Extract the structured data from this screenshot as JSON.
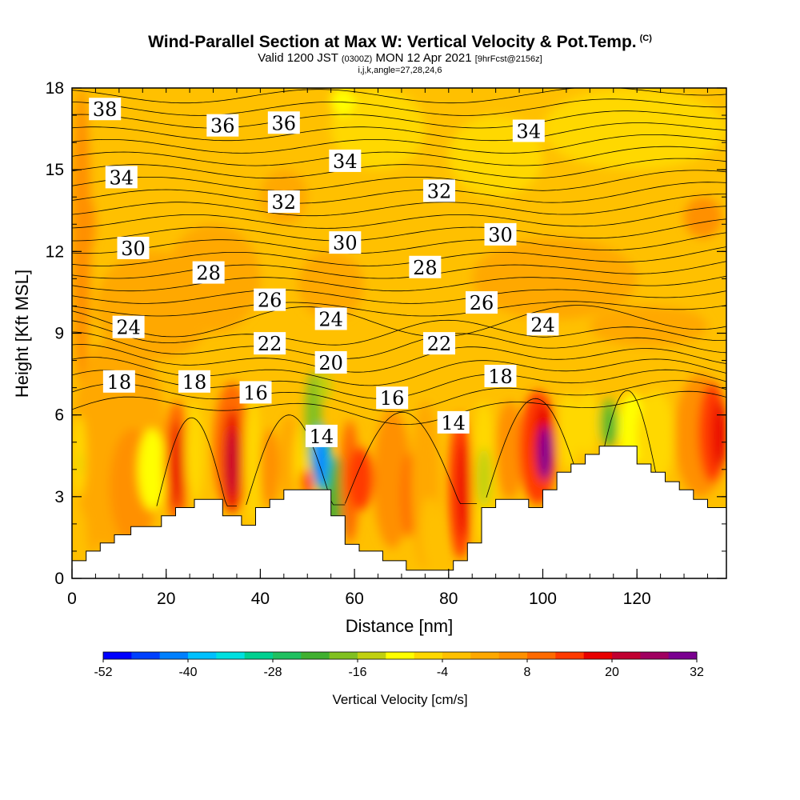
{
  "header": {
    "title": "Wind-Parallel Section at Max W: Vertical Velocity & Pot.Temp.",
    "copyright": "(C)",
    "valid_prefix": "Valid 1200 JST",
    "valid_utc": "(0300Z)",
    "valid_date": "MON 12 Apr 2021",
    "forecast": "[9hrFcst@2156z]",
    "indices": "i,j,k,angle=27,28,24,6"
  },
  "chart_data": {
    "type": "heatmap",
    "xlabel": "Distance [nm]",
    "ylabel": "Height [Kft MSL]",
    "xlim": [
      0,
      139
    ],
    "ylim": [
      0,
      18
    ],
    "x_ticks": [
      "0",
      "20",
      "40",
      "60",
      "80",
      "100",
      "120"
    ],
    "y_ticks": [
      "0",
      "3",
      "6",
      "9",
      "12",
      "15",
      "18"
    ],
    "colorbar": {
      "title": "Vertical Velocity [cm/s]",
      "tick_labels": [
        "-52",
        "-40",
        "-28",
        "-16",
        "-4",
        "8",
        "20",
        "32"
      ],
      "colors": [
        "#0000ff",
        "#0040ff",
        "#0080ff",
        "#00c0ff",
        "#00e0e0",
        "#00d090",
        "#20c060",
        "#40b030",
        "#80c020",
        "#c0d010",
        "#ffff00",
        "#ffd800",
        "#ffc000",
        "#ffa800",
        "#ff9000",
        "#ff6a00",
        "#ff3a00",
        "#e80000",
        "#c00030",
        "#a00060",
        "#7a0090"
      ]
    },
    "theta_contour_labels": [
      {
        "label": "38",
        "x": 7,
        "y": 17.2
      },
      {
        "label": "36",
        "x": 32,
        "y": 16.6
      },
      {
        "label": "36",
        "x": 45,
        "y": 16.7
      },
      {
        "label": "34",
        "x": 10.5,
        "y": 14.7
      },
      {
        "label": "34",
        "x": 58,
        "y": 15.3
      },
      {
        "label": "34",
        "x": 97,
        "y": 16.4
      },
      {
        "label": "32",
        "x": 45,
        "y": 13.8
      },
      {
        "label": "32",
        "x": 78,
        "y": 14.2
      },
      {
        "label": "30",
        "x": 13,
        "y": 12.1
      },
      {
        "label": "30",
        "x": 58,
        "y": 12.3
      },
      {
        "label": "30",
        "x": 91,
        "y": 12.6
      },
      {
        "label": "28",
        "x": 29,
        "y": 11.2
      },
      {
        "label": "28",
        "x": 75,
        "y": 11.4
      },
      {
        "label": "26",
        "x": 42,
        "y": 10.2
      },
      {
        "label": "26",
        "x": 87,
        "y": 10.1
      },
      {
        "label": "24",
        "x": 12,
        "y": 9.2
      },
      {
        "label": "24",
        "x": 55,
        "y": 9.5
      },
      {
        "label": "24",
        "x": 100,
        "y": 9.3
      },
      {
        "label": "22",
        "x": 42,
        "y": 8.6
      },
      {
        "label": "22",
        "x": 78,
        "y": 8.6
      },
      {
        "label": "20",
        "x": 55,
        "y": 7.9
      },
      {
        "label": "18",
        "x": 10,
        "y": 7.2
      },
      {
        "label": "18",
        "x": 26,
        "y": 7.2
      },
      {
        "label": "18",
        "x": 91,
        "y": 7.4
      },
      {
        "label": "16",
        "x": 39,
        "y": 6.8
      },
      {
        "label": "16",
        "x": 68,
        "y": 6.6
      },
      {
        "label": "14",
        "x": 53,
        "y": 5.2
      },
      {
        "label": "14",
        "x": 81,
        "y": 5.7
      }
    ],
    "terrain_profile": [
      [
        0,
        0.65
      ],
      [
        3,
        0.65
      ],
      [
        3,
        1.0
      ],
      [
        6,
        1.0
      ],
      [
        6,
        1.3
      ],
      [
        9,
        1.3
      ],
      [
        9,
        1.6
      ],
      [
        12.5,
        1.6
      ],
      [
        12.5,
        1.9
      ],
      [
        19,
        1.9
      ],
      [
        19,
        2.3
      ],
      [
        22,
        2.3
      ],
      [
        22,
        2.6
      ],
      [
        26,
        2.6
      ],
      [
        26,
        2.9
      ],
      [
        32,
        2.9
      ],
      [
        32,
        2.3
      ],
      [
        36,
        2.3
      ],
      [
        36,
        1.95
      ],
      [
        39,
        1.95
      ],
      [
        39,
        2.6
      ],
      [
        42,
        2.6
      ],
      [
        42,
        2.9
      ],
      [
        45,
        2.9
      ],
      [
        45,
        3.25
      ],
      [
        55,
        3.25
      ],
      [
        55,
        2.3
      ],
      [
        58,
        2.3
      ],
      [
        58,
        1.25
      ],
      [
        61,
        1.25
      ],
      [
        61,
        1.0
      ],
      [
        66,
        1.0
      ],
      [
        66,
        0.65
      ],
      [
        71,
        0.65
      ],
      [
        71,
        0.3
      ],
      [
        81,
        0.3
      ],
      [
        81,
        0.65
      ],
      [
        84,
        0.65
      ],
      [
        84,
        1.3
      ],
      [
        87,
        1.3
      ],
      [
        87,
        2.6
      ],
      [
        90,
        2.6
      ],
      [
        90,
        2.9
      ],
      [
        97,
        2.9
      ],
      [
        97,
        2.6
      ],
      [
        100,
        2.6
      ],
      [
        100,
        3.25
      ],
      [
        103,
        3.25
      ],
      [
        103,
        3.9
      ],
      [
        106,
        3.9
      ],
      [
        106,
        4.2
      ],
      [
        109,
        4.2
      ],
      [
        109,
        4.55
      ],
      [
        112,
        4.55
      ],
      [
        112,
        4.85
      ],
      [
        120,
        4.85
      ],
      [
        120,
        4.2
      ],
      [
        123,
        4.2
      ],
      [
        123,
        3.9
      ],
      [
        126,
        3.9
      ],
      [
        126,
        3.55
      ],
      [
        129,
        3.55
      ],
      [
        129,
        3.25
      ],
      [
        132,
        3.25
      ],
      [
        132,
        2.9
      ],
      [
        135,
        2.9
      ],
      [
        135,
        2.6
      ],
      [
        139,
        2.6
      ]
    ]
  }
}
